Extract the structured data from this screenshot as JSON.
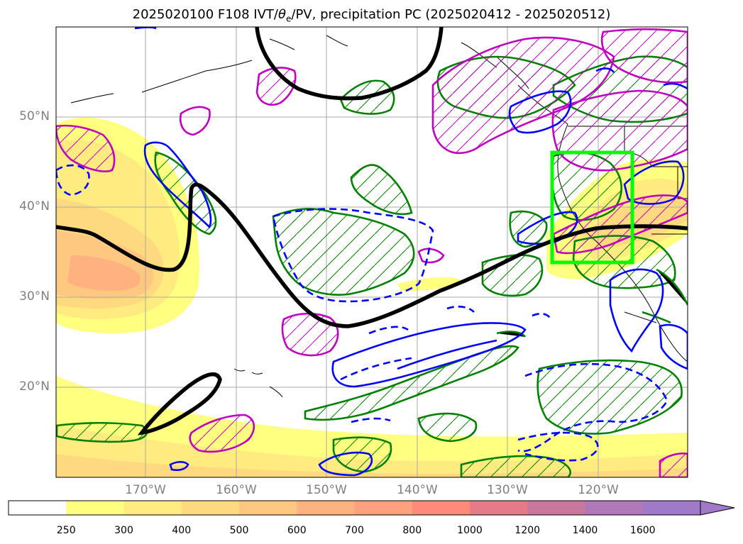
{
  "title_main": "2025020100 F108 IVT/",
  "title_theta": "θ",
  "title_sub": "e",
  "title_tail": "/PV, precipitation PC (2025020412 - 2025020512)",
  "lat_labels": [
    "50°N",
    "40°N",
    "30°N",
    "20°N"
  ],
  "lon_labels": [
    "170°W",
    "160°W",
    "150°W",
    "140°W",
    "130°W",
    "120°W"
  ],
  "colorbar": {
    "ticks": [
      "250",
      "300",
      "400",
      "500",
      "600",
      "700",
      "800",
      "1000",
      "1200",
      "1400",
      "1600"
    ],
    "colors": [
      "#ffffff",
      "#ffff80",
      "#ffeb80",
      "#ffd980",
      "#ffc880",
      "#ffb280",
      "#ffa07f",
      "#ff8a7a",
      "#e67a88",
      "#c8789c",
      "#b078b8",
      "#a07ac8"
    ],
    "extend": "max"
  },
  "colors": {
    "ivt_fill": "#ffe880",
    "pv_contour": "#000000",
    "positive_contour": "#008000",
    "theta_contour": "#0000ff",
    "pc_contour": "#c000c0",
    "box": "#00ff00",
    "grid": "#aaaaaa",
    "axis_label": "#7f7f7f"
  },
  "highlight_box": {
    "lon_range": [
      "-125°",
      "-116°"
    ],
    "lat_range": [
      "34°N",
      "46°N"
    ]
  }
}
